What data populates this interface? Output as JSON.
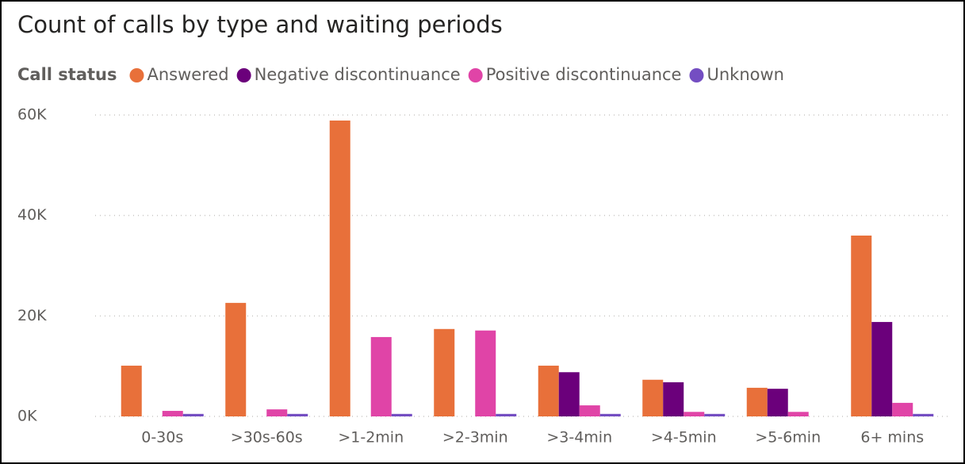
{
  "chart_data": {
    "type": "bar",
    "title": "Count of calls by type and waiting periods",
    "legend_title": "Call status",
    "categories": [
      "0-30s",
      ">30s-60s",
      ">1-2min",
      ">2-3min",
      ">3-4min",
      ">4-5min",
      ">5-6min",
      "6+ mins"
    ],
    "series": [
      {
        "name": "Answered",
        "color": "#e8703a",
        "values": [
          10100,
          22600,
          58900,
          17400,
          10100,
          7300,
          5700,
          36000
        ]
      },
      {
        "name": "Negative discontinuance",
        "color": "#6b007b",
        "values": [
          0,
          0,
          0,
          0,
          8800,
          6800,
          5500,
          18800
        ]
      },
      {
        "name": "Positive discontinuance",
        "color": "#e044a7",
        "values": [
          1100,
          1400,
          15800,
          17100,
          2200,
          900,
          900,
          2700
        ]
      },
      {
        "name": "Unknown",
        "color": "#744ec2",
        "values": [
          500,
          500,
          500,
          500,
          500,
          500,
          0,
          500
        ]
      }
    ],
    "ylim": [
      0,
      60000
    ],
    "yticks": [
      {
        "value": 0,
        "label": "0K"
      },
      {
        "value": 20000,
        "label": "20K"
      },
      {
        "value": 40000,
        "label": "40K"
      },
      {
        "value": 60000,
        "label": "60K"
      }
    ],
    "grid": true
  }
}
